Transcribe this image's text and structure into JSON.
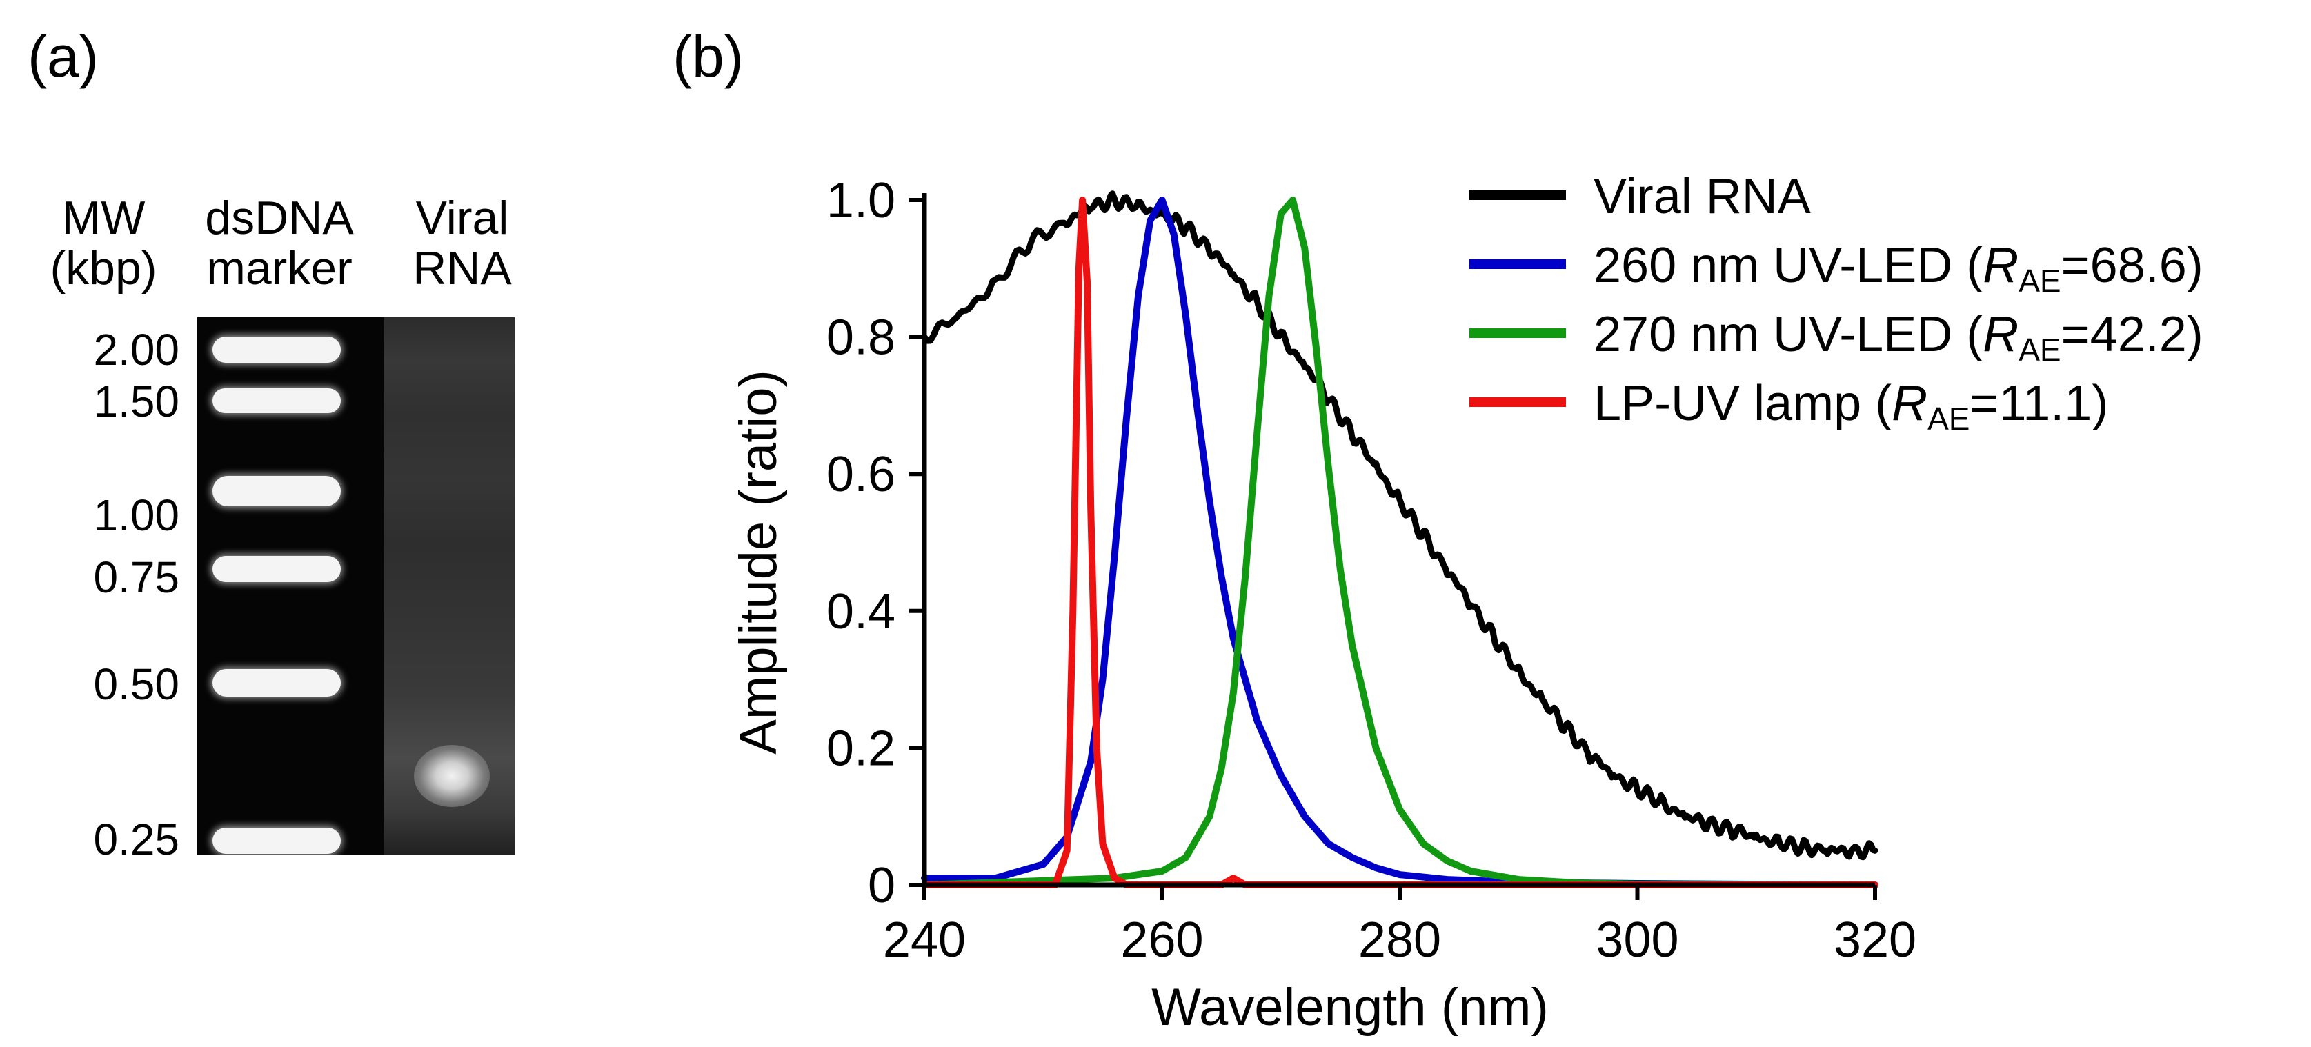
{
  "panel_a": {
    "label": "(a)",
    "column_headers": {
      "mw_line1": "MW",
      "mw_line2": "(kbp)",
      "marker_line1": "dsDNA",
      "marker_line2": "marker",
      "sample_line1": "Viral",
      "sample_line2": "RNA"
    },
    "mw_labels": [
      "2.00",
      "1.50",
      "1.00",
      "0.75",
      "0.50",
      "0.25"
    ]
  },
  "panel_b": {
    "label": "(b)"
  },
  "chart_data": {
    "type": "line",
    "title": "",
    "xlabel": "Wavelength (nm)",
    "ylabel": "Amplitude (ratio)",
    "xlim": [
      240,
      320
    ],
    "ylim": [
      0,
      1.0
    ],
    "xticks": [
      "240",
      "260",
      "280",
      "300",
      "320"
    ],
    "yticks": [
      "0",
      "0.2",
      "0.4",
      "0.6",
      "0.8",
      "1.0"
    ],
    "legend_position": "top-right",
    "series": [
      {
        "name": "Viral RNA",
        "legend_prefix": "Viral RNA",
        "legend_sub": "",
        "legend_suffix": "",
        "color": "#000000",
        "x": [
          240,
          243,
          246,
          249,
          252,
          254,
          256,
          258,
          260,
          262,
          264,
          266,
          268,
          270,
          272,
          274,
          276,
          278,
          280,
          282,
          284,
          286,
          288,
          290,
          292,
          294,
          296,
          298,
          300,
          302,
          304,
          306,
          308,
          310,
          312,
          314,
          316,
          318,
          320
        ],
        "y": [
          0.8,
          0.83,
          0.88,
          0.94,
          0.97,
          0.99,
          1.0,
          0.99,
          0.98,
          0.96,
          0.93,
          0.89,
          0.85,
          0.8,
          0.76,
          0.71,
          0.66,
          0.61,
          0.56,
          0.51,
          0.46,
          0.41,
          0.36,
          0.31,
          0.27,
          0.23,
          0.19,
          0.16,
          0.14,
          0.12,
          0.1,
          0.09,
          0.08,
          0.07,
          0.06,
          0.055,
          0.05,
          0.05,
          0.05
        ]
      },
      {
        "name": "260 nm UV-LED",
        "legend_prefix": "260 nm UV-LED (",
        "legend_sub": "AE",
        "legend_suffix": "=68.6)",
        "color": "#0000c8",
        "x": [
          240,
          246,
          250,
          252,
          254,
          255,
          256,
          257,
          258,
          259,
          260,
          261,
          262,
          263,
          264,
          265,
          266,
          268,
          270,
          272,
          274,
          276,
          278,
          280,
          284,
          290,
          300,
          320
        ],
        "y": [
          0.01,
          0.01,
          0.03,
          0.07,
          0.18,
          0.3,
          0.48,
          0.68,
          0.86,
          0.97,
          1.0,
          0.95,
          0.83,
          0.69,
          0.56,
          0.45,
          0.36,
          0.24,
          0.16,
          0.1,
          0.06,
          0.04,
          0.025,
          0.015,
          0.008,
          0.004,
          0.002,
          0.0
        ]
      },
      {
        "name": "270 nm UV-LED",
        "legend_prefix": "270 nm UV-LED (",
        "legend_sub": "AE",
        "legend_suffix": "=42.2)",
        "color": "#119911",
        "x": [
          240,
          256,
          260,
          262,
          264,
          265,
          266,
          267,
          268,
          269,
          270,
          271,
          272,
          273,
          274,
          275,
          276,
          278,
          280,
          282,
          284,
          286,
          290,
          295,
          300,
          320
        ],
        "y": [
          0.0,
          0.01,
          0.02,
          0.04,
          0.1,
          0.17,
          0.28,
          0.45,
          0.66,
          0.86,
          0.98,
          1.0,
          0.93,
          0.78,
          0.61,
          0.46,
          0.35,
          0.2,
          0.11,
          0.06,
          0.035,
          0.02,
          0.008,
          0.003,
          0.001,
          0.0
        ]
      },
      {
        "name": "LP-UV lamp",
        "legend_prefix": "LP-UV lamp (",
        "legend_sub": "AE",
        "legend_suffix": "=11.1)",
        "color": "#ee1111",
        "x": [
          240,
          251,
          252,
          252.5,
          253,
          253.3,
          253.7,
          254,
          254.5,
          255,
          256,
          257,
          260,
          265,
          266,
          267,
          320
        ],
        "y": [
          0.0,
          0.0,
          0.05,
          0.4,
          0.9,
          1.0,
          0.88,
          0.55,
          0.2,
          0.06,
          0.01,
          0.0,
          0.0,
          0.0,
          0.01,
          0.0,
          0.0
        ]
      }
    ]
  }
}
